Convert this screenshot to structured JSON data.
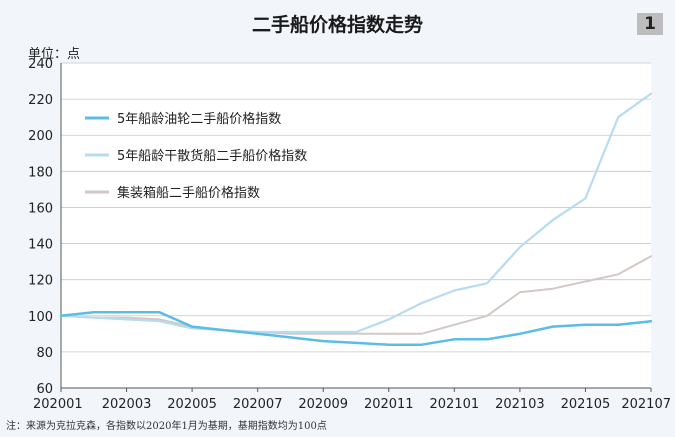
{
  "figure_number": "1",
  "unit_label": "单位：点",
  "footnote": "注：来源为克拉克森，各指数以2020年1月为基期，基期指数均为100点",
  "chart_data": {
    "type": "line",
    "title": "二手船价格指数走势",
    "xlabel": "",
    "ylabel": "",
    "x": [
      "202001",
      "202002",
      "202003",
      "202004",
      "202005",
      "202006",
      "202007",
      "202008",
      "202009",
      "202010",
      "202011",
      "202012",
      "202101",
      "202102",
      "202103",
      "202104",
      "202105",
      "202106",
      "202107"
    ],
    "x_tick_labels": [
      "202001",
      "202003",
      "202005",
      "202007",
      "202009",
      "202011",
      "202101",
      "202103",
      "202105",
      "202107"
    ],
    "y_ticks": [
      60,
      80,
      100,
      120,
      140,
      160,
      180,
      200,
      220,
      240
    ],
    "ylim": [
      60,
      240
    ],
    "grid": "horizontal",
    "legend_position": "top-left",
    "series": [
      {
        "name": "5年船龄油轮二手船价格指数",
        "color": "#5bbde4",
        "width": 2.5,
        "values": [
          100,
          102,
          102,
          102,
          94,
          92,
          90,
          88,
          86,
          85,
          84,
          84,
          87,
          87,
          90,
          94,
          95,
          95,
          97
        ]
      },
      {
        "name": "5年船龄干散货船二手船价格指数",
        "color": "#b7dcf0",
        "width": 2.2,
        "values": [
          100,
          99,
          98,
          97,
          93,
          92,
          91,
          91,
          91,
          91,
          98,
          107,
          114,
          118,
          138,
          153,
          165,
          210,
          223
        ]
      },
      {
        "name": "集装箱船二手船价格指数",
        "color": "#d2c9c6",
        "width": 2.0,
        "values": [
          100,
          99,
          99,
          98,
          94,
          92,
          91,
          90,
          90,
          90,
          90,
          90,
          95,
          100,
          113,
          115,
          119,
          123,
          133
        ]
      }
    ]
  }
}
